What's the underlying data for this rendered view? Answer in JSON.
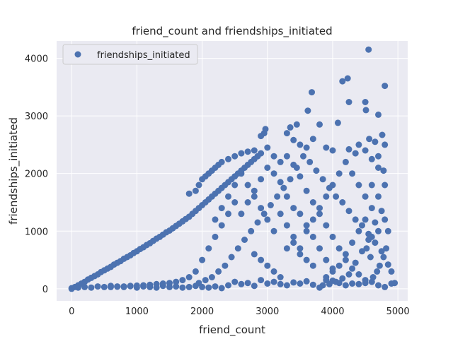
{
  "chart_data": {
    "type": "scatter",
    "title": "friend_count and friendships_initiated",
    "xlabel": "friend_count",
    "ylabel": "friendships_initiated",
    "xlim": [
      -230,
      5150
    ],
    "ylim": [
      -210,
      4300
    ],
    "xticks": [
      0,
      1000,
      2000,
      3000,
      4000,
      5000
    ],
    "yticks": [
      0,
      1000,
      2000,
      3000,
      4000
    ],
    "grid": true,
    "legend_position": "top-left",
    "background_color": "#EAEAF2",
    "grid_color": "#FFFFFF",
    "series": [
      {
        "name": "friendships_initiated",
        "color": "#4C72B0",
        "marker": "circle",
        "points": [
          [
            0,
            0
          ],
          [
            50,
            30
          ],
          [
            100,
            60
          ],
          [
            150,
            90
          ],
          [
            200,
            120
          ],
          [
            250,
            160
          ],
          [
            300,
            190
          ],
          [
            350,
            220
          ],
          [
            400,
            250
          ],
          [
            450,
            290
          ],
          [
            500,
            320
          ],
          [
            550,
            350
          ],
          [
            600,
            380
          ],
          [
            650,
            420
          ],
          [
            700,
            450
          ],
          [
            750,
            480
          ],
          [
            800,
            520
          ],
          [
            850,
            550
          ],
          [
            900,
            580
          ],
          [
            950,
            620
          ],
          [
            1000,
            650
          ],
          [
            1050,
            690
          ],
          [
            1100,
            720
          ],
          [
            1150,
            760
          ],
          [
            1200,
            790
          ],
          [
            1250,
            830
          ],
          [
            1300,
            870
          ],
          [
            1350,
            900
          ],
          [
            1400,
            940
          ],
          [
            1450,
            980
          ],
          [
            1500,
            1010
          ],
          [
            1550,
            1050
          ],
          [
            1600,
            1090
          ],
          [
            1650,
            1130
          ],
          [
            1700,
            1170
          ],
          [
            1750,
            1210
          ],
          [
            1800,
            1250
          ],
          [
            1850,
            1300
          ],
          [
            1900,
            1350
          ],
          [
            1950,
            1400
          ],
          [
            2000,
            1450
          ],
          [
            2050,
            1500
          ],
          [
            2100,
            1550
          ],
          [
            2150,
            1600
          ],
          [
            2200,
            1650
          ],
          [
            2250,
            1700
          ],
          [
            2300,
            1750
          ],
          [
            2350,
            1800
          ],
          [
            2400,
            1850
          ],
          [
            2450,
            1900
          ],
          [
            2500,
            1950
          ],
          [
            2550,
            2000
          ],
          [
            2600,
            2050
          ],
          [
            2650,
            2100
          ],
          [
            2700,
            2150
          ],
          [
            2750,
            2200
          ],
          [
            2800,
            2250
          ],
          [
            2850,
            2300
          ],
          [
            1800,
            1650
          ],
          [
            1900,
            1700
          ],
          [
            1950,
            1800
          ],
          [
            2000,
            1900
          ],
          [
            2050,
            1950
          ],
          [
            2100,
            2000
          ],
          [
            2150,
            2050
          ],
          [
            2200,
            2100
          ],
          [
            2250,
            2150
          ],
          [
            2300,
            2200
          ],
          [
            2400,
            2250
          ],
          [
            2500,
            2300
          ],
          [
            2600,
            2350
          ],
          [
            2700,
            2380
          ],
          [
            2800,
            2400
          ],
          [
            2900,
            2350
          ],
          [
            3000,
            2450
          ],
          [
            2900,
            2650
          ],
          [
            2950,
            2700
          ],
          [
            2970,
            2770
          ],
          [
            3300,
            2700
          ],
          [
            3350,
            2800
          ],
          [
            3450,
            2850
          ],
          [
            3400,
            2580
          ],
          [
            3500,
            2500
          ],
          [
            3600,
            2450
          ],
          [
            3620,
            3090
          ],
          [
            3680,
            3410
          ],
          [
            3700,
            2600
          ],
          [
            3800,
            2850
          ],
          [
            3900,
            2450
          ],
          [
            4000,
            2400
          ],
          [
            4080,
            2880
          ],
          [
            4150,
            3600
          ],
          [
            4230,
            3650
          ],
          [
            4250,
            3240
          ],
          [
            4250,
            2420
          ],
          [
            4350,
            2350
          ],
          [
            4400,
            2500
          ],
          [
            4500,
            3240
          ],
          [
            4510,
            3100
          ],
          [
            4550,
            4150
          ],
          [
            4560,
            2600
          ],
          [
            4650,
            2550
          ],
          [
            4700,
            3020
          ],
          [
            4760,
            2670
          ],
          [
            4800,
            3520
          ],
          [
            4780,
            2050
          ],
          [
            4500,
            2400
          ],
          [
            4600,
            2250
          ],
          [
            4700,
            2100
          ],
          [
            0,
            10
          ],
          [
            100,
            20
          ],
          [
            200,
            30
          ],
          [
            300,
            20
          ],
          [
            400,
            40
          ],
          [
            500,
            30
          ],
          [
            600,
            50
          ],
          [
            700,
            40
          ],
          [
            800,
            30
          ],
          [
            900,
            50
          ],
          [
            1000,
            20
          ],
          [
            1100,
            40
          ],
          [
            1200,
            30
          ],
          [
            1300,
            20
          ],
          [
            1400,
            50
          ],
          [
            1500,
            30
          ],
          [
            1600,
            40
          ],
          [
            1700,
            20
          ],
          [
            1800,
            30
          ],
          [
            1900,
            50
          ],
          [
            2000,
            30
          ],
          [
            2100,
            20
          ],
          [
            2200,
            40
          ],
          [
            2300,
            10
          ],
          [
            2400,
            60
          ],
          [
            2500,
            120
          ],
          [
            2600,
            80
          ],
          [
            2700,
            100
          ],
          [
            2800,
            50
          ],
          [
            2900,
            150
          ],
          [
            3000,
            90
          ],
          [
            3100,
            120
          ],
          [
            3200,
            80
          ],
          [
            3300,
            60
          ],
          [
            3400,
            110
          ],
          [
            3500,
            90
          ],
          [
            3600,
            130
          ],
          [
            3700,
            70
          ],
          [
            3800,
            20
          ],
          [
            3900,
            150
          ],
          [
            4000,
            140
          ],
          [
            4100,
            100
          ],
          [
            4200,
            60
          ],
          [
            4300,
            90
          ],
          [
            4400,
            80
          ],
          [
            4500,
            150
          ],
          [
            4600,
            120
          ],
          [
            4700,
            60
          ],
          [
            4800,
            30
          ],
          [
            4900,
            90
          ],
          [
            4850,
            420
          ],
          [
            4750,
            650
          ],
          [
            4650,
            800
          ],
          [
            4550,
            950
          ],
          [
            4450,
            1100
          ],
          [
            4350,
            1200
          ],
          [
            4250,
            1350
          ],
          [
            4150,
            1500
          ],
          [
            4050,
            1600
          ],
          [
            3950,
            1750
          ],
          [
            3850,
            1900
          ],
          [
            3750,
            2050
          ],
          [
            3650,
            2200
          ],
          [
            3550,
            2300
          ],
          [
            3450,
            2100
          ],
          [
            3350,
            1900
          ],
          [
            3250,
            1750
          ],
          [
            3150,
            1600
          ],
          [
            3050,
            1450
          ],
          [
            2950,
            1300
          ],
          [
            2850,
            1150
          ],
          [
            2750,
            1000
          ],
          [
            2650,
            850
          ],
          [
            2550,
            700
          ],
          [
            2450,
            550
          ],
          [
            2350,
            400
          ],
          [
            2250,
            300
          ],
          [
            2150,
            200
          ],
          [
            2050,
            150
          ],
          [
            1950,
            100
          ],
          [
            4800,
            1800
          ],
          [
            4700,
            1600
          ],
          [
            4600,
            1400
          ],
          [
            4500,
            1200
          ],
          [
            4400,
            1000
          ],
          [
            4300,
            800
          ],
          [
            4200,
            600
          ],
          [
            4100,
            400
          ],
          [
            4000,
            300
          ],
          [
            3900,
            200
          ],
          [
            4750,
            1350
          ],
          [
            4650,
            1150
          ],
          [
            4550,
            850
          ],
          [
            4450,
            650
          ],
          [
            4350,
            450
          ],
          [
            4250,
            250
          ],
          [
            4150,
            180
          ],
          [
            4050,
            120
          ],
          [
            3950,
            80
          ],
          [
            3850,
            60
          ],
          [
            3100,
            2000
          ],
          [
            3200,
            1850
          ],
          [
            3300,
            1600
          ],
          [
            3400,
            1400
          ],
          [
            3500,
            1300
          ],
          [
            3600,
            1100
          ],
          [
            3700,
            900
          ],
          [
            3800,
            700
          ],
          [
            3900,
            500
          ],
          [
            4000,
            350
          ],
          [
            2600,
            1300
          ],
          [
            2700,
            1500
          ],
          [
            2800,
            1700
          ],
          [
            2900,
            1900
          ],
          [
            3000,
            2100
          ],
          [
            3100,
            2300
          ],
          [
            3200,
            2200
          ],
          [
            3300,
            2300
          ],
          [
            3400,
            2150
          ],
          [
            3500,
            1950
          ],
          [
            2500,
            1500
          ],
          [
            2400,
            1300
          ],
          [
            2300,
            1100
          ],
          [
            2200,
            900
          ],
          [
            2100,
            700
          ],
          [
            2000,
            500
          ],
          [
            1900,
            300
          ],
          [
            1800,
            200
          ],
          [
            1700,
            150
          ],
          [
            1600,
            120
          ],
          [
            1500,
            100
          ],
          [
            1400,
            90
          ],
          [
            1300,
            80
          ],
          [
            1200,
            70
          ],
          [
            1100,
            60
          ],
          [
            1000,
            55
          ],
          [
            900,
            45
          ],
          [
            800,
            40
          ],
          [
            700,
            35
          ],
          [
            600,
            30
          ],
          [
            3600,
            1700
          ],
          [
            3700,
            1500
          ],
          [
            3800,
            1300
          ],
          [
            3900,
            1100
          ],
          [
            4000,
            900
          ],
          [
            4100,
            700
          ],
          [
            4200,
            500
          ],
          [
            4300,
            350
          ],
          [
            4400,
            250
          ],
          [
            4500,
            100
          ],
          [
            4600,
            900
          ],
          [
            4700,
            1000
          ],
          [
            4800,
            1200
          ],
          [
            4820,
            700
          ],
          [
            4780,
            550
          ],
          [
            4720,
            400
          ],
          [
            4680,
            300
          ],
          [
            4620,
            200
          ],
          [
            4580,
            550
          ],
          [
            4520,
            700
          ],
          [
            2800,
            600
          ],
          [
            2900,
            500
          ],
          [
            3000,
            400
          ],
          [
            3100,
            300
          ],
          [
            3200,
            200
          ],
          [
            3300,
            700
          ],
          [
            3400,
            800
          ],
          [
            3500,
            600
          ],
          [
            3600,
            500
          ],
          [
            3700,
            400
          ],
          [
            2200,
            1200
          ],
          [
            2300,
            1400
          ],
          [
            2400,
            1600
          ],
          [
            2500,
            1800
          ],
          [
            2600,
            2000
          ],
          [
            2700,
            1800
          ],
          [
            2800,
            1600
          ],
          [
            2900,
            1400
          ],
          [
            3000,
            1200
          ],
          [
            3100,
            1000
          ],
          [
            3200,
            1300
          ],
          [
            3300,
            1100
          ],
          [
            3400,
            900
          ],
          [
            3500,
            700
          ],
          [
            3600,
            1000
          ],
          [
            3700,
            1200
          ],
          [
            3800,
            1400
          ],
          [
            3900,
            1600
          ],
          [
            4000,
            1800
          ],
          [
            4100,
            2000
          ],
          [
            4200,
            2200
          ],
          [
            4300,
            2000
          ],
          [
            4400,
            1800
          ],
          [
            4500,
            1600
          ],
          [
            4600,
            1800
          ],
          [
            4700,
            2300
          ],
          [
            4800,
            2500
          ],
          [
            4850,
            1000
          ],
          [
            4900,
            300
          ],
          [
            4950,
            100
          ]
        ]
      }
    ]
  }
}
